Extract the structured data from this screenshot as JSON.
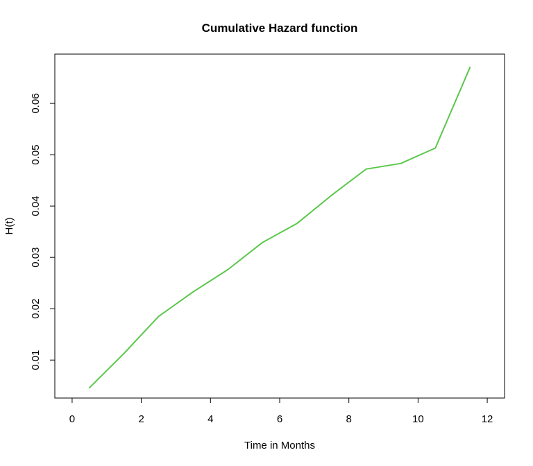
{
  "chart_data": {
    "type": "line",
    "title": "Cumulative Hazard function",
    "xlabel": "Time in Months",
    "ylabel": "H(t)",
    "xlim": [
      -0.5,
      12.5
    ],
    "ylim": [
      0.0026,
      0.0696
    ],
    "x_ticks": [
      0,
      2,
      4,
      6,
      8,
      10,
      12
    ],
    "y_ticks": [
      0.01,
      0.02,
      0.03,
      0.04,
      0.05,
      0.06
    ],
    "x_tick_labels": [
      "0",
      "2",
      "4",
      "6",
      "8",
      "10",
      "12"
    ],
    "y_tick_labels": [
      "0.01",
      "0.02",
      "0.03",
      "0.04",
      "0.05",
      "0.06"
    ],
    "grid": false,
    "series": [
      {
        "color": "#5ac84a",
        "x": [
          0.5,
          1.5,
          2.5,
          3.5,
          4.5,
          5.5,
          6.5,
          7.5,
          8.5,
          9.5,
          10.5,
          11.5
        ],
        "y": [
          0.0046,
          0.0113,
          0.0185,
          0.0233,
          0.0276,
          0.0329,
          0.0366,
          0.0421,
          0.0472,
          0.0483,
          0.0513,
          0.067
        ]
      }
    ]
  }
}
